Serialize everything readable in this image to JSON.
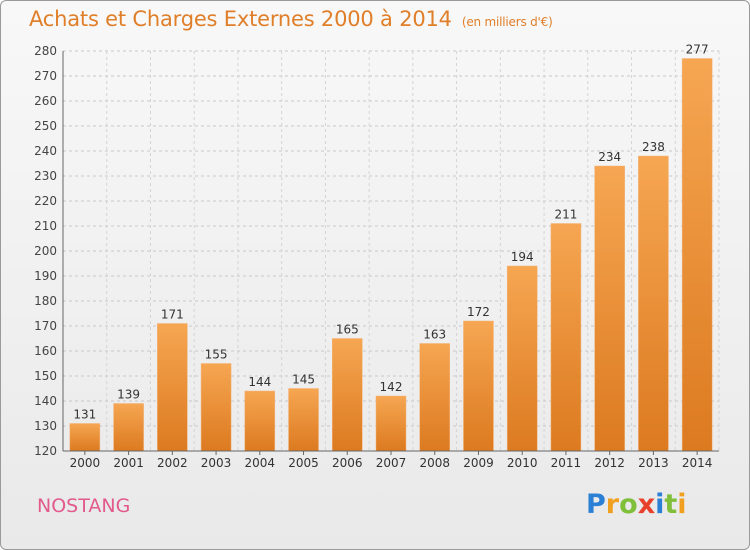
{
  "title": "Achats et Charges Externes 2000 à 2014",
  "subtitle": "(en milliers d'€)",
  "place": "NOSTANG",
  "logo": {
    "text": "Proxiti",
    "letters": [
      {
        "ch": "P",
        "color": "#2b7fd4"
      },
      {
        "ch": "r",
        "color": "#f0a020"
      },
      {
        "ch": "o",
        "color": "#7fbf3a"
      },
      {
        "ch": "x",
        "color": "#e8402a"
      },
      {
        "ch": "i",
        "color": "#2b7fd4"
      },
      {
        "ch": "t",
        "color": "#7fbf3a"
      },
      {
        "ch": "i",
        "color": "#f0a020"
      }
    ]
  },
  "colors": {
    "bar_top": "#f6a652",
    "bar_bottom": "#dc7a20",
    "title": "#e07f2a",
    "place": "#e25a8c"
  },
  "chart_data": {
    "type": "bar",
    "title": "Achats et Charges Externes 2000 à 2014",
    "subtitle": "(en milliers d'€)",
    "xlabel": "",
    "ylabel": "",
    "ylim": [
      120,
      280
    ],
    "ytick_step": 10,
    "yticks": [
      "120",
      "130",
      "140",
      "150",
      "160",
      "170",
      "180",
      "190",
      "200",
      "210",
      "220",
      "230",
      "240",
      "250",
      "260",
      "270",
      "280"
    ],
    "grid": "horizontal dashed",
    "categories": [
      "2000",
      "2001",
      "2002",
      "2003",
      "2004",
      "2005",
      "2006",
      "2007",
      "2008",
      "2009",
      "2010",
      "2011",
      "2012",
      "2013",
      "2014"
    ],
    "values": [
      131,
      139,
      171,
      155,
      144,
      145,
      165,
      142,
      163,
      172,
      194,
      211,
      234,
      238,
      277
    ],
    "value_labels": [
      "131",
      "139",
      "171",
      "155",
      "144",
      "145",
      "165",
      "142",
      "163",
      "172",
      "194",
      "211",
      "234",
      "238",
      "277"
    ]
  }
}
